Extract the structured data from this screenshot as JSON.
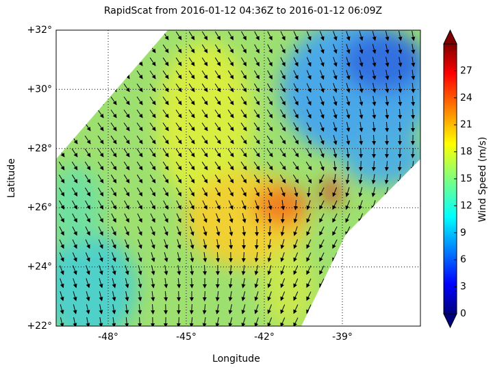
{
  "title": "RapidScat  from 2016-01-12 04:36Z to 2016-01-12 06:09Z",
  "axes": {
    "xlabel": "Longitude",
    "ylabel": "Latitude",
    "xlim": [
      -50,
      -36
    ],
    "ylim": [
      22,
      32
    ],
    "xticks": [
      {
        "value": -48,
        "label": "-48°"
      },
      {
        "value": -45,
        "label": "-45°"
      },
      {
        "value": -42,
        "label": "-42°"
      },
      {
        "value": -39,
        "label": "-39°"
      }
    ],
    "yticks": [
      {
        "value": 22,
        "label": "+22°"
      },
      {
        "value": 24,
        "label": "+24°"
      },
      {
        "value": 26,
        "label": "+26°"
      },
      {
        "value": 28,
        "label": "+28°"
      },
      {
        "value": 30,
        "label": "+30°"
      },
      {
        "value": 32,
        "label": "+32°"
      }
    ],
    "grid": true
  },
  "colorbar": {
    "label": "Wind Speed (m/s)",
    "clim": [
      0,
      30
    ],
    "ticks": [
      0,
      3,
      6,
      9,
      12,
      15,
      18,
      21,
      24,
      27
    ]
  }
}
